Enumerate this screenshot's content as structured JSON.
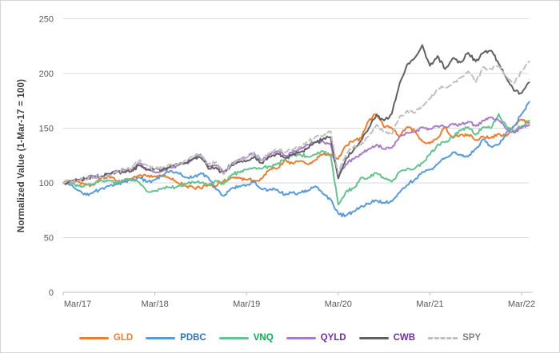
{
  "chart_data": {
    "type": "line",
    "title": "",
    "xlabel": "",
    "ylabel": "Normalized Value (1-Mar-17 = 100)",
    "x_tick_labels": [
      "Mar/17",
      "Mar/18",
      "Mar/19",
      "Mar/20",
      "Mar/21",
      "Mar/22"
    ],
    "x_tick_month_indices": [
      0,
      12,
      24,
      36,
      48,
      60
    ],
    "x_unit": "monthly samples from Mar/17 to Apr/22",
    "y_ticks": [
      0,
      50,
      100,
      150,
      200,
      250
    ],
    "ylim": [
      0,
      250
    ],
    "grid": true,
    "grid_color": "#D9D9D9",
    "axis_line_color": "#BFBFBF",
    "axis_text_color": "#595959",
    "legend_position": "bottom",
    "series": [
      {
        "name": "GLD",
        "color": "#ED7D31",
        "label_color": "#ED7D31",
        "dash": false,
        "values": [
          100,
          102,
          101,
          99,
          98,
          105,
          106,
          102,
          102,
          104,
          107,
          106,
          106,
          106,
          104,
          100,
          97,
          96,
          95,
          98,
          97,
          102,
          105,
          105,
          103,
          102,
          104,
          112,
          113,
          121,
          118,
          120,
          117,
          121,
          126,
          126,
          122,
          134,
          138,
          141,
          157,
          163,
          151,
          150,
          142,
          151,
          148,
          138,
          136,
          141,
          151,
          141,
          144,
          144,
          139,
          142,
          141,
          145,
          143,
          152,
          158,
          155
        ]
      },
      {
        "name": "PDBC",
        "color": "#5B9BD5",
        "label_color": "#2E75B6",
        "dash": false,
        "values": [
          100,
          98,
          93,
          89,
          92,
          95,
          97,
          99,
          101,
          102,
          105,
          101,
          103,
          107,
          111,
          109,
          105,
          105,
          109,
          105,
          94,
          88,
          95,
          97,
          98,
          101,
          94,
          94,
          94,
          89,
          91,
          91,
          93,
          97,
          90,
          85,
          72,
          70,
          74,
          79,
          81,
          84,
          82,
          83,
          91,
          98,
          103,
          110,
          112,
          117,
          123,
          128,
          126,
          124,
          131,
          140,
          133,
          135,
          146,
          152,
          163,
          174
        ]
      },
      {
        "name": "VNQ",
        "color": "#66C28F",
        "label_color": "#00B050",
        "dash": false,
        "values": [
          100,
          100,
          97,
          98,
          99,
          102,
          102,
          100,
          103,
          103,
          100,
          92,
          93,
          95,
          96,
          97,
          99,
          101,
          100,
          98,
          102,
          99,
          107,
          110,
          112,
          114,
          113,
          115,
          117,
          121,
          125,
          126,
          124,
          126,
          129,
          125,
          80,
          92,
          95,
          105,
          105,
          109,
          104,
          101,
          110,
          113,
          113,
          118,
          126,
          135,
          137,
          142,
          148,
          151,
          144,
          151,
          150,
          163,
          152,
          147,
          152,
          157
        ]
      },
      {
        "name": "QYLD",
        "color": "#A87CC9",
        "label_color": "#7030A0",
        "dash": false,
        "values": [
          100,
          101,
          103,
          104,
          106,
          106,
          108,
          111,
          112,
          112,
          118,
          112,
          110,
          111,
          114,
          116,
          118,
          122,
          126,
          115,
          116,
          110,
          117,
          121,
          123,
          127,
          120,
          126,
          129,
          125,
          128,
          131,
          135,
          137,
          138,
          135,
          107,
          117,
          122,
          126,
          131,
          135,
          131,
          132,
          142,
          146,
          147,
          151,
          149,
          152,
          151,
          154,
          153,
          156,
          152,
          157,
          160,
          157,
          149,
          146,
          150,
          153
        ]
      },
      {
        "name": "CWB",
        "color": "#616161",
        "label_color": "#7030A0",
        "dash": false,
        "values": [
          100,
          101,
          103,
          104,
          105,
          106,
          108,
          110,
          110,
          111,
          116,
          112,
          113,
          112,
          115,
          117,
          118,
          122,
          123,
          113,
          114,
          108,
          116,
          119,
          120,
          124,
          118,
          124,
          127,
          123,
          126,
          128,
          132,
          137,
          140,
          142,
          104,
          122,
          130,
          139,
          150,
          162,
          157,
          163,
          190,
          208,
          214,
          226,
          207,
          216,
          204,
          214,
          210,
          219,
          211,
          219,
          221,
          209,
          196,
          184,
          182,
          192
        ]
      },
      {
        "name": "SPY",
        "color": "#BFBFBF",
        "label_color": "#808080",
        "dash": true,
        "values": [
          100,
          101,
          102,
          103,
          105,
          105,
          107,
          110,
          113,
          114,
          121,
          116,
          113,
          114,
          117,
          117,
          121,
          125,
          126,
          117,
          119,
          108,
          117,
          121,
          123,
          128,
          120,
          128,
          130,
          128,
          130,
          133,
          138,
          142,
          143,
          147,
          108,
          126,
          133,
          135,
          143,
          153,
          147,
          144,
          160,
          166,
          164,
          170,
          177,
          186,
          187,
          191,
          196,
          202,
          192,
          206,
          204,
          207,
          196,
          191,
          202,
          211
        ]
      }
    ]
  }
}
